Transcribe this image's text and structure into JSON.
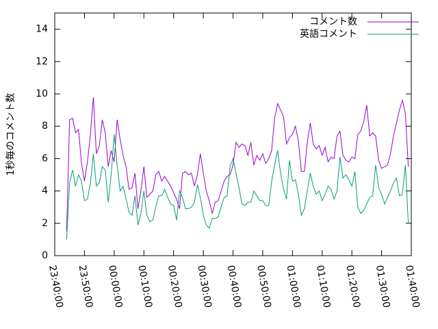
{
  "chart_data": {
    "type": "line",
    "y_label": "1秒毎のコメント数",
    "x": [
      "23:44:00",
      "23:45:00",
      "23:46:00",
      "23:47:00",
      "23:48:00",
      "23:49:00",
      "23:50:00",
      "23:51:00",
      "23:52:00",
      "23:53:00",
      "23:54:00",
      "23:55:00",
      "23:56:00",
      "23:57:00",
      "23:58:00",
      "23:59:00",
      "00:00:00",
      "00:01:00",
      "00:02:00",
      "00:03:00",
      "00:04:00",
      "00:05:00",
      "00:06:00",
      "00:07:00",
      "00:08:00",
      "00:09:00",
      "00:10:00",
      "00:11:00",
      "00:12:00",
      "00:13:00",
      "00:14:00",
      "00:15:00",
      "00:16:00",
      "00:17:00",
      "00:18:00",
      "00:19:00",
      "00:20:00",
      "00:21:00",
      "00:22:00",
      "00:23:00",
      "00:24:00",
      "00:25:00",
      "00:26:00",
      "00:27:00",
      "00:28:00",
      "00:29:00",
      "00:30:00",
      "00:31:00",
      "00:32:00",
      "00:33:00",
      "00:34:00",
      "00:35:00",
      "00:36:00",
      "00:37:00",
      "00:38:00",
      "00:39:00",
      "00:40:00",
      "00:41:00",
      "00:42:00",
      "00:43:00",
      "00:44:00",
      "00:45:00",
      "00:46:00",
      "00:47:00",
      "00:48:00",
      "00:49:00",
      "00:50:00",
      "00:51:00",
      "00:52:00",
      "00:53:00",
      "00:54:00",
      "00:55:00",
      "00:56:00",
      "00:57:00",
      "00:58:00",
      "00:59:00",
      "01:00:00",
      "01:01:00",
      "01:02:00",
      "01:03:00",
      "01:04:00",
      "01:05:00",
      "01:06:00",
      "01:07:00",
      "01:08:00",
      "01:09:00",
      "01:10:00",
      "01:11:00",
      "01:12:00",
      "01:13:00",
      "01:14:00",
      "01:15:00",
      "01:16:00",
      "01:17:00",
      "01:18:00",
      "01:19:00",
      "01:20:00",
      "01:21:00",
      "01:22:00",
      "01:23:00",
      "01:24:00",
      "01:25:00",
      "01:26:00",
      "01:27:00",
      "01:28:00",
      "01:29:00",
      "01:30:00",
      "01:31:00",
      "01:32:00",
      "01:33:00",
      "01:34:00",
      "01:35:00",
      "01:36:00",
      "01:37:00",
      "01:38:00",
      "01:39:00"
    ],
    "series": [
      {
        "name": "コメント数",
        "color": "#9400d3",
        "values": [
          1.5,
          8.4,
          8.5,
          7.6,
          7.8,
          5.7,
          4.6,
          5.8,
          7.5,
          9.8,
          6.3,
          6.8,
          8.4,
          7.6,
          5.5,
          6.5,
          5.8,
          8.4,
          7.2,
          6.2,
          5.5,
          4.1,
          4.2,
          5.1,
          2.9,
          4.0,
          5.5,
          3.6,
          3.8,
          4.0,
          5.0,
          5.2,
          4.6,
          4.9,
          4.6,
          4.3,
          3.9,
          3.5,
          2.9,
          5.1,
          5.2,
          5.0,
          5.1,
          4.3,
          5.0,
          6.3,
          5.1,
          4.0,
          3.4,
          2.6,
          3.3,
          3.4,
          4.0,
          4.6,
          4.9,
          5.0,
          5.6,
          7.0,
          6.7,
          6.9,
          6.8,
          6.2,
          7.0,
          5.6,
          6.2,
          5.9,
          6.3,
          5.7,
          6.0,
          6.5,
          8.5,
          9.4,
          9.0,
          8.6,
          6.9,
          7.3,
          7.5,
          8.0,
          7.1,
          5.2,
          5.2,
          7.0,
          8.2,
          6.9,
          6.6,
          6.8,
          6.2,
          6.7,
          5.8,
          6.1,
          6.0,
          7.4,
          7.7,
          6.2,
          5.9,
          5.8,
          6.1,
          6.0,
          7.5,
          7.7,
          8.3,
          9.3,
          7.4,
          7.6,
          7.4,
          5.9,
          5.4,
          5.5,
          5.6,
          6.3,
          7.4,
          8.2,
          9.0,
          9.6,
          8.8,
          5.5
        ]
      },
      {
        "name": "英語コメント",
        "color": "#009e73",
        "values": [
          1.0,
          4.5,
          5.3,
          4.3,
          5.0,
          4.6,
          3.4,
          3.5,
          4.5,
          6.3,
          4.3,
          4.5,
          5.5,
          5.3,
          3.3,
          5.0,
          7.5,
          5.6,
          4.0,
          4.3,
          3.5,
          2.7,
          2.5,
          3.7,
          1.9,
          2.6,
          4.0,
          2.5,
          2.1,
          2.2,
          3.0,
          3.7,
          3.7,
          4.1,
          3.6,
          3.2,
          3.1,
          2.2,
          4.0,
          3.6,
          2.9,
          2.9,
          3.0,
          3.3,
          4.4,
          3.6,
          2.5,
          1.9,
          1.7,
          2.3,
          2.3,
          2.4,
          3.0,
          3.6,
          3.7,
          5.5,
          6.0,
          5.1,
          4.2,
          3.2,
          3.1,
          3.3,
          3.3,
          4.0,
          3.7,
          3.4,
          3.4,
          3.1,
          3.1,
          4.6,
          5.6,
          6.5,
          5.1,
          4.1,
          3.5,
          5.9,
          4.6,
          4.7,
          3.8,
          2.5,
          2.9,
          4.0,
          5.1,
          4.3,
          3.8,
          4.0,
          3.4,
          3.8,
          4.3,
          4.1,
          3.5,
          4.0,
          6.1,
          4.8,
          5.0,
          4.7,
          4.3,
          5.2,
          3.0,
          2.6,
          2.8,
          3.2,
          3.6,
          3.7,
          5.6,
          4.2,
          3.8,
          3.2,
          3.6,
          4.0,
          4.5,
          4.8,
          3.7,
          3.8,
          5.6,
          2.0
        ]
      }
    ],
    "xlim": [
      "23:40:00",
      "01:40:00"
    ],
    "xticks": [
      "23:40:00",
      "23:50:00",
      "00:00:00",
      "00:10:00",
      "00:20:00",
      "00:30:00",
      "00:40:00",
      "00:50:00",
      "01:00:00",
      "01:10:00",
      "01:20:00",
      "01:30:00",
      "01:40:00"
    ],
    "ylim": [
      0,
      15
    ],
    "yticks": [
      0,
      2,
      4,
      6,
      8,
      10,
      12,
      14
    ],
    "legend": "top right"
  }
}
